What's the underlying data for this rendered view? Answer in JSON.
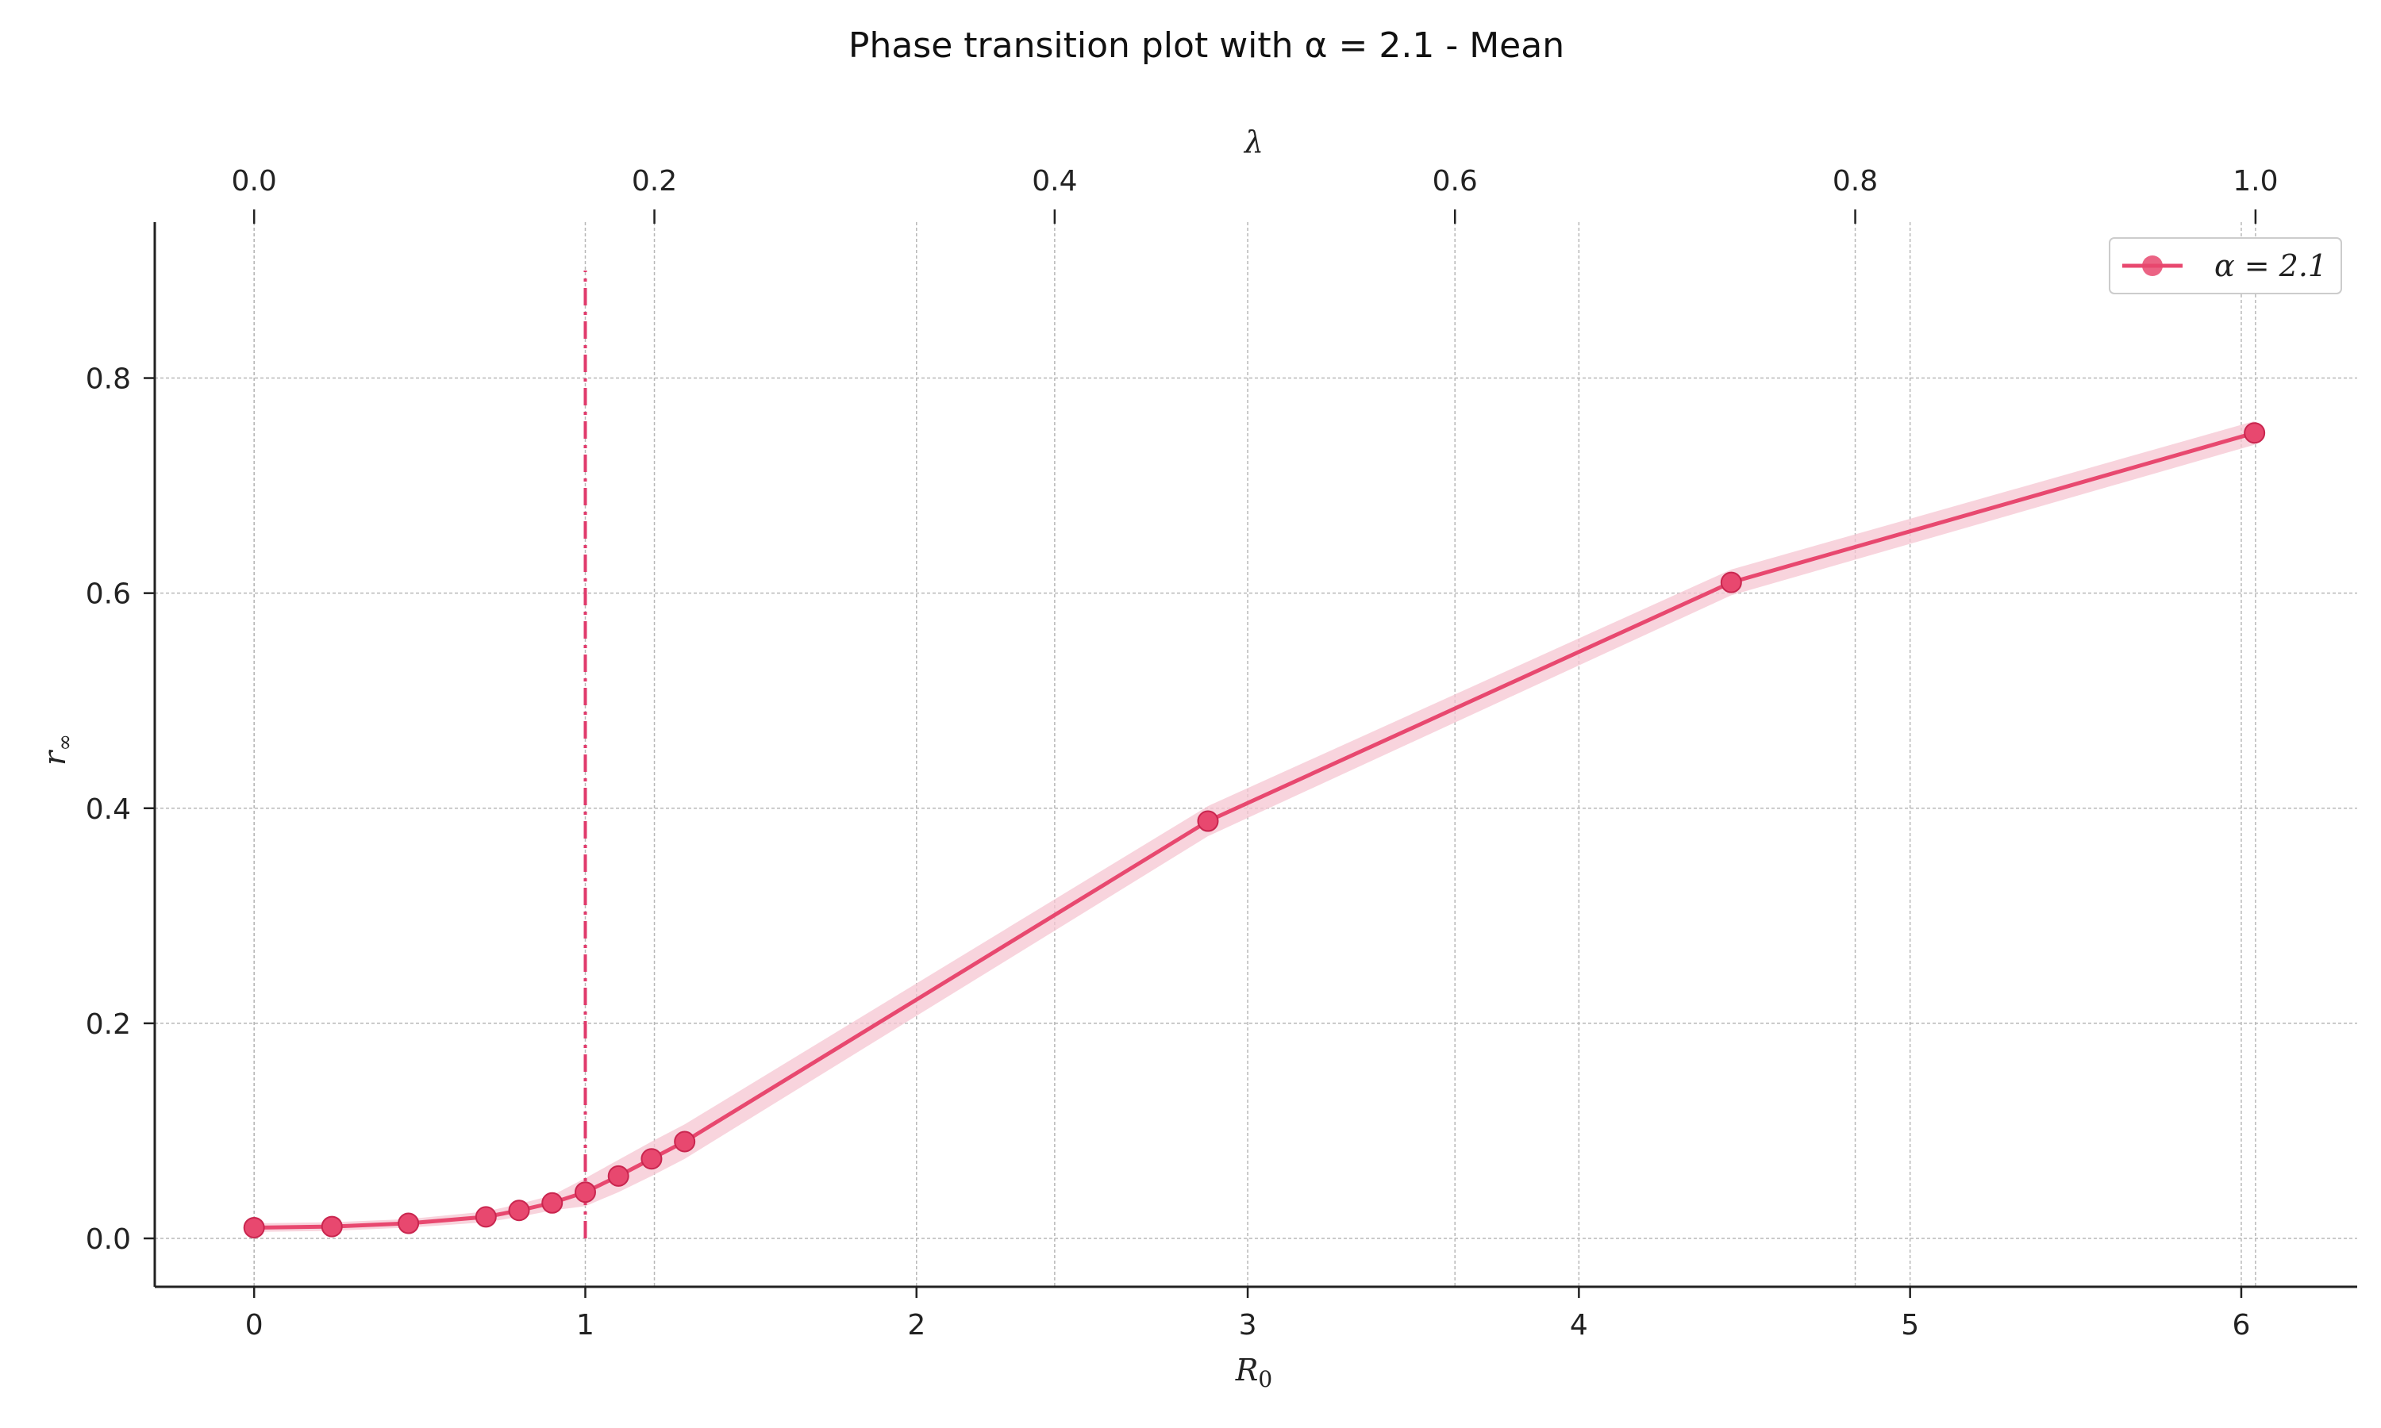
{
  "chart_data": {
    "type": "line",
    "title": "Phase transition plot with α = 2.1 - Mean",
    "xlabel": "R",
    "xlabel_sub": "0",
    "ylabel": "r",
    "ylabel_sub": "∞",
    "top_xlabel": "λ",
    "xlim": [
      -0.3,
      6.35
    ],
    "ylim": [
      -0.045,
      0.945
    ],
    "x_ticks": [
      "0",
      "1",
      "2",
      "3",
      "4",
      "5",
      "6"
    ],
    "y_ticks": [
      "0.0",
      "0.2",
      "0.4",
      "0.6",
      "0.8"
    ],
    "top_ticks": [
      "0.0",
      "0.2",
      "0.4",
      "0.6",
      "0.8",
      "1.0"
    ],
    "top_tick_positions_in_x": [
      0,
      1.2086,
      2.4172,
      3.6258,
      4.8344,
      6.043
    ],
    "grid": true,
    "legend_position": "top-right",
    "threshold": {
      "x": 1.0,
      "y_range": [
        0,
        0.9
      ],
      "style": "dash-dot"
    },
    "series": [
      {
        "name": "α = 2.1",
        "color": "#e8486f",
        "band_color": "#f6c6d2",
        "x": [
          0.0,
          0.235,
          0.466,
          0.7,
          0.8,
          0.9,
          1.0,
          1.1,
          1.2,
          1.3,
          2.88,
          4.46,
          6.04
        ],
        "y": [
          0.01,
          0.011,
          0.014,
          0.02,
          0.026,
          0.033,
          0.043,
          0.058,
          0.074,
          0.09,
          0.388,
          0.61,
          0.749
        ],
        "band": [
          0.004,
          0.004,
          0.004,
          0.005,
          0.006,
          0.007,
          0.013,
          0.015,
          0.016,
          0.016,
          0.014,
          0.012,
          0.011
        ]
      }
    ]
  }
}
